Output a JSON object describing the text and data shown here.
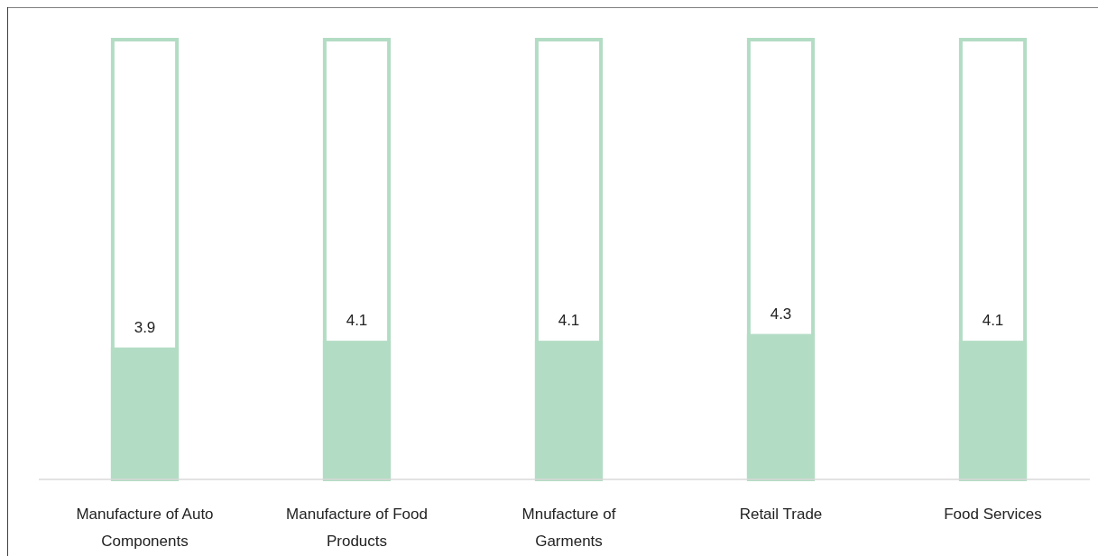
{
  "chart_data": {
    "type": "bar",
    "categories": [
      "Manufacture of Auto Components",
      "Manufacture of Food Products",
      "Mnufacture of Garments",
      "Retail Trade",
      "Food Services"
    ],
    "series": [
      {
        "color": "#b3dcc4",
        "values": [
          13,
          13,
          13,
          13,
          13
        ]
      },
      {
        "color": "#b3dcc4",
        "values": [
          3.9,
          4.1,
          4.1,
          4.3,
          4.1
        ],
        "value_labels": [
          "3.9",
          "4.1",
          "4.1",
          "4.3",
          "4.1"
        ]
      }
    ],
    "ylim": [
      0,
      13
    ],
    "tick_labels": "x"
  }
}
